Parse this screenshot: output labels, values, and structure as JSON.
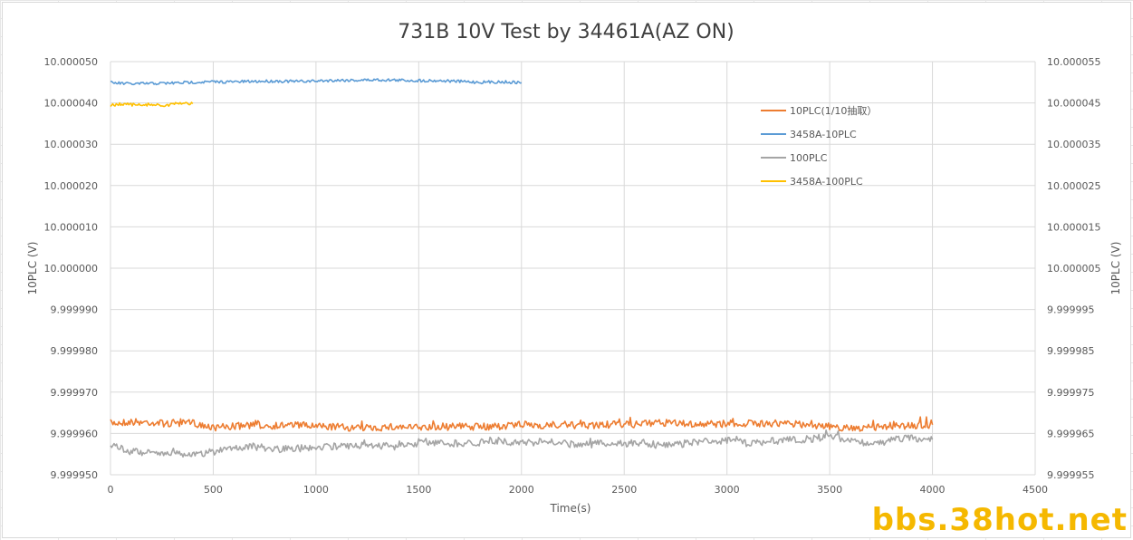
{
  "chart_data": {
    "type": "line",
    "title": "731B 10V Test by 34461A(AZ ON)",
    "xlabel": "Time(s)",
    "ylabel_left": "10PLC (V)",
    "ylabel_right": "10PLC (V)",
    "xlim": [
      0,
      4500
    ],
    "xticks": [
      0,
      500,
      1000,
      1500,
      2000,
      2500,
      3000,
      3500,
      4000,
      4500
    ],
    "ylim_left": [
      9.99995,
      10.00005
    ],
    "yticks_left": [
      "9.999950",
      "9.999960",
      "9.999970",
      "9.999980",
      "9.999990",
      "10.000000",
      "10.000010",
      "10.000020",
      "10.000030",
      "10.000040",
      "10.000050"
    ],
    "ylim_right": [
      9.999955,
      10.000055
    ],
    "yticks_right": [
      "9.999955",
      "9.999965",
      "9.999975",
      "9.999985",
      "9.999995",
      "10.000005",
      "10.000015",
      "10.000025",
      "10.000035",
      "10.000045",
      "10.000055"
    ],
    "grid": true,
    "legend_position": "top-right",
    "series": [
      {
        "name": "10PLC(1/10抽取）",
        "color": "#ed7d31",
        "axis": "left",
        "x": [
          0,
          100,
          200,
          300,
          400,
          500,
          600,
          700,
          800,
          900,
          1000,
          1100,
          1200,
          1300,
          1400,
          1500,
          1600,
          1700,
          1800,
          1900,
          2000,
          2100,
          2200,
          2300,
          2400,
          2500,
          2600,
          2700,
          2800,
          2900,
          3000,
          3100,
          3200,
          3300,
          3400,
          3500,
          3600,
          3700,
          3800,
          3900,
          4000
        ],
        "y": [
          9.9999625,
          9.9999628,
          9.9999627,
          9.9999623,
          9.9999626,
          9.9999614,
          9.9999617,
          9.999962,
          9.9999619,
          9.9999621,
          9.9999617,
          9.9999616,
          9.9999613,
          9.9999614,
          9.9999616,
          9.9999614,
          9.9999615,
          9.9999617,
          9.9999616,
          9.9999618,
          9.9999621,
          9.999962,
          9.9999621,
          9.9999619,
          9.9999621,
          9.9999621,
          9.9999623,
          9.9999626,
          9.9999623,
          9.9999622,
          9.9999624,
          9.9999624,
          9.9999625,
          9.9999623,
          9.9999622,
          9.9999616,
          9.9999613,
          9.9999614,
          9.9999618,
          9.9999619,
          9.9999621
        ]
      },
      {
        "name": "3458A-10PLC",
        "color": "#5b9bd5",
        "axis": "right",
        "x": [
          0,
          100,
          200,
          300,
          400,
          500,
          600,
          700,
          800,
          900,
          1000,
          1100,
          1200,
          1300,
          1400,
          1500,
          1600,
          1700,
          1800,
          1900,
          2000
        ],
        "y": [
          10.0000499,
          10.0000496,
          10.0000497,
          10.0000498,
          10.00005,
          10.0000501,
          10.0000501,
          10.0000502,
          10.0000503,
          10.0000502,
          10.0000503,
          10.0000505,
          10.0000505,
          10.0000506,
          10.0000505,
          10.0000504,
          10.0000504,
          10.0000502,
          10.00005,
          10.0000501,
          10.0000499
        ]
      },
      {
        "name": "100PLC",
        "color": "#a5a5a5",
        "axis": "left",
        "x": [
          0,
          100,
          200,
          300,
          400,
          500,
          600,
          700,
          800,
          900,
          1000,
          1100,
          1200,
          1300,
          1400,
          1500,
          1600,
          1700,
          1800,
          1900,
          2000,
          2100,
          2200,
          2300,
          2400,
          2500,
          2600,
          2700,
          2800,
          2900,
          3000,
          3100,
          3200,
          3300,
          3400,
          3500,
          3600,
          3700,
          3800,
          3900,
          4000
        ],
        "y": [
          9.9999572,
          9.9999556,
          9.9999551,
          9.9999556,
          9.9999548,
          9.9999555,
          9.9999567,
          9.9999568,
          9.9999562,
          9.9999563,
          9.9999567,
          9.9999569,
          9.999957,
          9.9999571,
          9.9999568,
          9.9999575,
          9.9999578,
          9.9999576,
          9.9999579,
          9.9999582,
          9.9999577,
          9.999958,
          9.9999576,
          9.9999572,
          9.9999577,
          9.9999575,
          9.9999577,
          9.9999569,
          9.9999576,
          9.999958,
          9.9999583,
          9.9999577,
          9.9999581,
          9.9999584,
          9.9999586,
          9.9999592,
          9.9999585,
          9.9999574,
          9.9999584,
          9.9999589,
          9.9999585
        ]
      },
      {
        "name": "3458A-100PLC",
        "color": "#ffc000",
        "axis": "right",
        "x": [
          0,
          50,
          100,
          150,
          200,
          250,
          300,
          350,
          400
        ],
        "y": [
          10.0000444,
          10.0000447,
          10.0000446,
          10.0000444,
          10.0000447,
          10.0000443,
          10.0000446,
          10.000045,
          10.0000448
        ]
      }
    ]
  },
  "watermark": "bbs.38hot.net"
}
